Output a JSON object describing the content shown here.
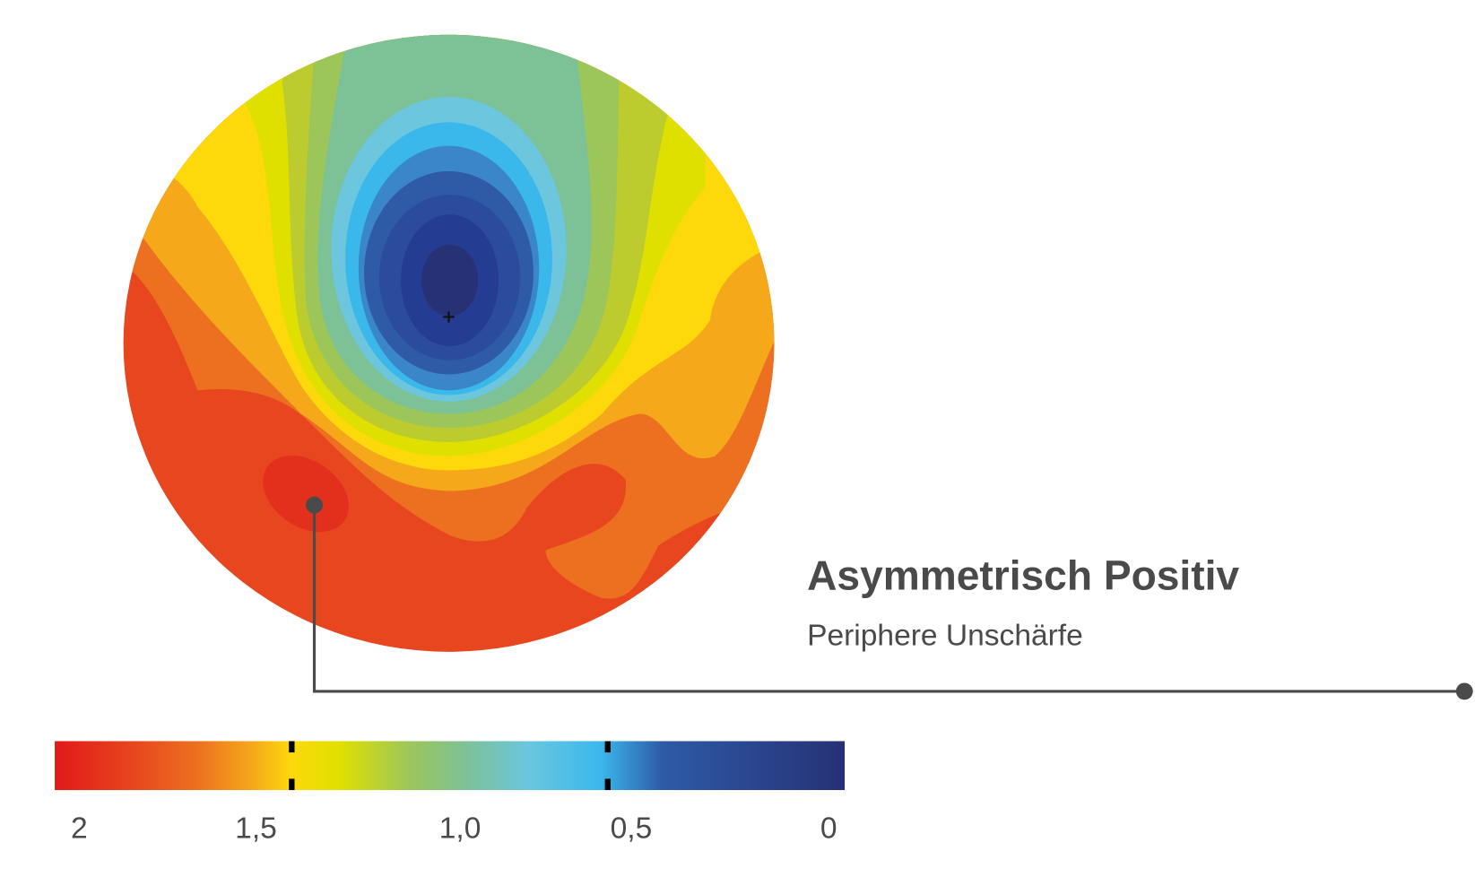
{
  "title": "Asymmetrisch Positiv",
  "subtitle": "Periphere Unschärfe",
  "scale": {
    "labels": [
      "2",
      "1,5",
      "1,0",
      "0,5",
      "0"
    ]
  }
}
